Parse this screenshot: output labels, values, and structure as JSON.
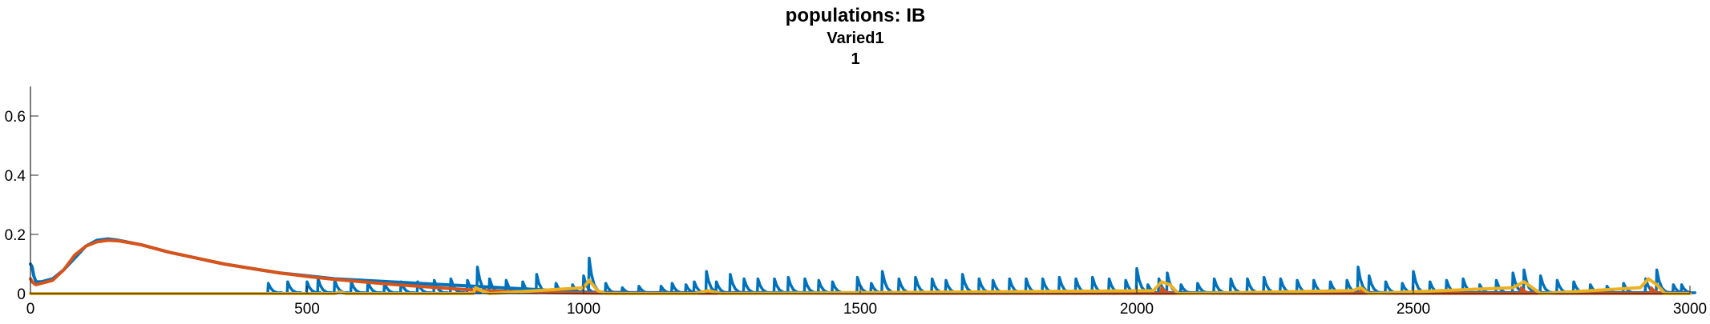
{
  "chart_data": {
    "type": "line",
    "title": [
      "populations: IB",
      "Varied1",
      "1"
    ],
    "xlabel": "",
    "ylabel": "",
    "xlim": [
      0,
      3000
    ],
    "ylim": [
      0,
      0.7
    ],
    "xticks": [
      0,
      500,
      1000,
      1500,
      2000,
      2500,
      3000
    ],
    "xtick_labels": [
      "0",
      "500",
      "1000",
      "1500",
      "2000",
      "2500",
      "3000"
    ],
    "yticks": [
      0,
      0.2,
      0.4,
      0.6
    ],
    "ytick_labels": [
      "0",
      "0.2",
      "0.4",
      "0.6"
    ],
    "grid": false,
    "legend": "none",
    "series": [
      {
        "color": "#0072BD",
        "x": [
          0,
          3,
          6,
          10,
          20,
          40,
          60,
          80,
          100,
          120,
          140,
          160,
          200,
          250,
          300,
          350,
          400,
          450,
          500,
          550,
          600,
          650,
          700,
          750,
          800,
          850,
          900,
          950,
          1000,
          1050,
          1100,
          1150,
          1200,
          1300,
          1400,
          1500,
          1600,
          1700,
          1800,
          1900,
          2000,
          2050,
          2100,
          2200,
          2300,
          2400,
          2500,
          2600,
          2700,
          2800,
          2900,
          3000
        ],
        "y": [
          0.1,
          0.09,
          0.06,
          0.04,
          0.04,
          0.05,
          0.08,
          0.12,
          0.16,
          0.18,
          0.185,
          0.18,
          0.165,
          0.14,
          0.12,
          0.1,
          0.085,
          0.07,
          0.06,
          0.05,
          0.045,
          0.04,
          0.035,
          0.03,
          0.025,
          0.02,
          0.015,
          0.01,
          0.005,
          0.004,
          0.003,
          0.003,
          0.003,
          0.003,
          0.003,
          0.003,
          0.003,
          0.003,
          0.003,
          0.003,
          0.003,
          0.003,
          0.003,
          0.003,
          0.003,
          0.003,
          0.003,
          0.003,
          0.003,
          0.003,
          0.003,
          0.003
        ],
        "spikes": [
          {
            "x": 430,
            "h": 0.035
          },
          {
            "x": 465,
            "h": 0.04
          },
          {
            "x": 500,
            "h": 0.04
          },
          {
            "x": 520,
            "h": 0.05
          },
          {
            "x": 550,
            "h": 0.045
          },
          {
            "x": 580,
            "h": 0.04
          },
          {
            "x": 610,
            "h": 0.04
          },
          {
            "x": 640,
            "h": 0.035
          },
          {
            "x": 670,
            "h": 0.04
          },
          {
            "x": 700,
            "h": 0.04
          },
          {
            "x": 730,
            "h": 0.045
          },
          {
            "x": 760,
            "h": 0.05
          },
          {
            "x": 790,
            "h": 0.045
          },
          {
            "x": 808,
            "h": 0.09
          },
          {
            "x": 830,
            "h": 0.05
          },
          {
            "x": 860,
            "h": 0.045
          },
          {
            "x": 890,
            "h": 0.04
          },
          {
            "x": 915,
            "h": 0.065
          },
          {
            "x": 950,
            "h": 0.035
          },
          {
            "x": 980,
            "h": 0.03
          },
          {
            "x": 1000,
            "h": 0.06
          },
          {
            "x": 1010,
            "h": 0.12
          },
          {
            "x": 1040,
            "h": 0.035
          },
          {
            "x": 1070,
            "h": 0.02
          },
          {
            "x": 1100,
            "h": 0.025
          },
          {
            "x": 1140,
            "h": 0.025
          },
          {
            "x": 1160,
            "h": 0.035
          },
          {
            "x": 1185,
            "h": 0.03
          },
          {
            "x": 1200,
            "h": 0.04
          },
          {
            "x": 1222,
            "h": 0.075
          },
          {
            "x": 1240,
            "h": 0.04
          },
          {
            "x": 1265,
            "h": 0.065
          },
          {
            "x": 1290,
            "h": 0.05
          },
          {
            "x": 1315,
            "h": 0.05
          },
          {
            "x": 1345,
            "h": 0.05
          },
          {
            "x": 1370,
            "h": 0.055
          },
          {
            "x": 1400,
            "h": 0.05
          },
          {
            "x": 1425,
            "h": 0.045
          },
          {
            "x": 1450,
            "h": 0.04
          },
          {
            "x": 1495,
            "h": 0.055
          },
          {
            "x": 1520,
            "h": 0.035
          },
          {
            "x": 1540,
            "h": 0.075
          },
          {
            "x": 1570,
            "h": 0.05
          },
          {
            "x": 1600,
            "h": 0.055
          },
          {
            "x": 1630,
            "h": 0.05
          },
          {
            "x": 1655,
            "h": 0.045
          },
          {
            "x": 1685,
            "h": 0.065
          },
          {
            "x": 1715,
            "h": 0.05
          },
          {
            "x": 1740,
            "h": 0.045
          },
          {
            "x": 1770,
            "h": 0.05
          },
          {
            "x": 1800,
            "h": 0.05
          },
          {
            "x": 1830,
            "h": 0.05
          },
          {
            "x": 1860,
            "h": 0.055
          },
          {
            "x": 1890,
            "h": 0.05
          },
          {
            "x": 1920,
            "h": 0.055
          },
          {
            "x": 1950,
            "h": 0.05
          },
          {
            "x": 1980,
            "h": 0.045
          },
          {
            "x": 2000,
            "h": 0.085
          },
          {
            "x": 2020,
            "h": 0.03
          },
          {
            "x": 2040,
            "h": 0.05
          },
          {
            "x": 2055,
            "h": 0.07
          },
          {
            "x": 2080,
            "h": 0.03
          },
          {
            "x": 2110,
            "h": 0.035
          },
          {
            "x": 2140,
            "h": 0.05
          },
          {
            "x": 2170,
            "h": 0.05
          },
          {
            "x": 2200,
            "h": 0.05
          },
          {
            "x": 2230,
            "h": 0.055
          },
          {
            "x": 2260,
            "h": 0.05
          },
          {
            "x": 2290,
            "h": 0.045
          },
          {
            "x": 2320,
            "h": 0.045
          },
          {
            "x": 2350,
            "h": 0.04
          },
          {
            "x": 2380,
            "h": 0.045
          },
          {
            "x": 2400,
            "h": 0.09
          },
          {
            "x": 2420,
            "h": 0.06
          },
          {
            "x": 2450,
            "h": 0.04
          },
          {
            "x": 2480,
            "h": 0.035
          },
          {
            "x": 2500,
            "h": 0.075
          },
          {
            "x": 2530,
            "h": 0.04
          },
          {
            "x": 2560,
            "h": 0.045
          },
          {
            "x": 2590,
            "h": 0.05
          },
          {
            "x": 2620,
            "h": 0.03
          },
          {
            "x": 2650,
            "h": 0.045
          },
          {
            "x": 2680,
            "h": 0.07
          },
          {
            "x": 2700,
            "h": 0.08
          },
          {
            "x": 2730,
            "h": 0.06
          },
          {
            "x": 2760,
            "h": 0.045
          },
          {
            "x": 2790,
            "h": 0.04
          },
          {
            "x": 2820,
            "h": 0.03
          },
          {
            "x": 2850,
            "h": 0.025
          },
          {
            "x": 2880,
            "h": 0.035
          },
          {
            "x": 2920,
            "h": 0.05
          },
          {
            "x": 2940,
            "h": 0.08
          },
          {
            "x": 2970,
            "h": 0.03
          },
          {
            "x": 2985,
            "h": 0.03
          }
        ]
      },
      {
        "color": "#D95319",
        "x": [
          0,
          3,
          6,
          10,
          20,
          40,
          60,
          80,
          100,
          120,
          140,
          160,
          200,
          250,
          300,
          350,
          400,
          450,
          500,
          550,
          600,
          650,
          700,
          750,
          800,
          850,
          900,
          950,
          1000,
          1100,
          1200,
          1400,
          1600,
          1800,
          2000,
          2200,
          2400,
          2600,
          2800,
          3000
        ],
        "y": [
          0.05,
          0.04,
          0.035,
          0.03,
          0.035,
          0.045,
          0.08,
          0.13,
          0.16,
          0.175,
          0.18,
          0.178,
          0.165,
          0.14,
          0.12,
          0.1,
          0.085,
          0.07,
          0.058,
          0.048,
          0.04,
          0.032,
          0.025,
          0.018,
          0.012,
          0.008,
          0.005,
          0.003,
          0.002,
          0.001,
          0.001,
          0.001,
          0.001,
          0.001,
          0.001,
          0.001,
          0.001,
          0.001,
          0.001,
          0.001
        ],
        "spikes": [
          {
            "x": 2045,
            "h": 0.02
          },
          {
            "x": 2405,
            "h": 0.015
          },
          {
            "x": 2695,
            "h": 0.02
          },
          {
            "x": 2930,
            "h": 0.02
          }
        ]
      },
      {
        "color": "#EDB120",
        "x": [
          0,
          500,
          550,
          560,
          570,
          800,
          805,
          815,
          830,
          1000,
          1010,
          1025,
          1040,
          1200,
          1225,
          1250,
          2030,
          2045,
          2060,
          2075,
          2390,
          2405,
          2420,
          2680,
          2700,
          2715,
          2730,
          2910,
          2925,
          2940,
          2955,
          3000
        ],
        "y": [
          0.0,
          0.0,
          0.0,
          0.005,
          0.0,
          0.0,
          0.02,
          0.01,
          0.0,
          0.02,
          0.045,
          0.01,
          0.0,
          0.0,
          0.01,
          0.0,
          0.01,
          0.04,
          0.03,
          0.0,
          0.01,
          0.02,
          0.0,
          0.02,
          0.04,
          0.02,
          0.0,
          0.02,
          0.05,
          0.03,
          0.0,
          0.0
        ],
        "spikes": []
      }
    ]
  }
}
